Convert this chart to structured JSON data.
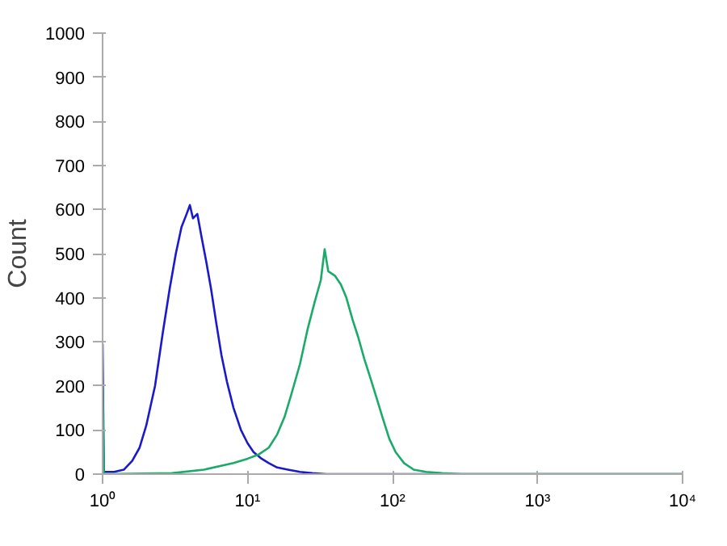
{
  "chart_data": {
    "type": "line",
    "ylabel": "Count",
    "log": "x",
    "grid": false,
    "marker": "none",
    "line_style": "solid",
    "xlim": [
      1,
      10000
    ],
    "ylim": [
      0,
      1000
    ],
    "xticks": [
      {
        "value": 1,
        "label": "10⁰"
      },
      {
        "value": 10,
        "label": "10¹"
      },
      {
        "value": 100,
        "label": "10²"
      },
      {
        "value": 1000,
        "label": "10³"
      },
      {
        "value": 10000,
        "label": "10⁴"
      }
    ],
    "yticks": [
      0,
      100,
      200,
      300,
      400,
      500,
      600,
      700,
      800,
      900,
      1000
    ],
    "series": [
      {
        "color": "#1a1acc",
        "x": [
          1.0,
          1.0,
          1.02,
          1.2,
          1.4,
          1.6,
          1.8,
          2.0,
          2.3,
          2.6,
          2.9,
          3.2,
          3.5,
          3.8,
          4.0,
          4.2,
          4.5,
          4.8,
          5.2,
          5.6,
          6.1,
          6.6,
          7.2,
          8,
          9,
          10,
          11,
          12.5,
          14,
          16,
          19,
          23,
          28,
          35,
          100,
          10000
        ],
        "values": [
          0,
          295,
          5,
          5,
          10,
          30,
          60,
          110,
          200,
          320,
          420,
          500,
          560,
          590,
          610,
          580,
          590,
          540,
          480,
          420,
          340,
          270,
          210,
          150,
          100,
          70,
          50,
          35,
          25,
          15,
          10,
          5,
          2,
          0,
          0,
          0
        ]
      },
      {
        "color": "#1aaa6a",
        "x": [
          1.0,
          1.0,
          1.02,
          3,
          5,
          8,
          10,
          12,
          14,
          16,
          18,
          20,
          23,
          26,
          29,
          32,
          34,
          36,
          40,
          44,
          48,
          53,
          58,
          64,
          70,
          78,
          85,
          95,
          105,
          120,
          140,
          170,
          220,
          300,
          10000
        ],
        "values": [
          0,
          200,
          0,
          2,
          10,
          25,
          35,
          45,
          60,
          90,
          130,
          180,
          250,
          330,
          390,
          440,
          510,
          460,
          450,
          430,
          400,
          350,
          310,
          260,
          220,
          170,
          130,
          80,
          50,
          25,
          10,
          5,
          2,
          0,
          0
        ]
      }
    ]
  }
}
